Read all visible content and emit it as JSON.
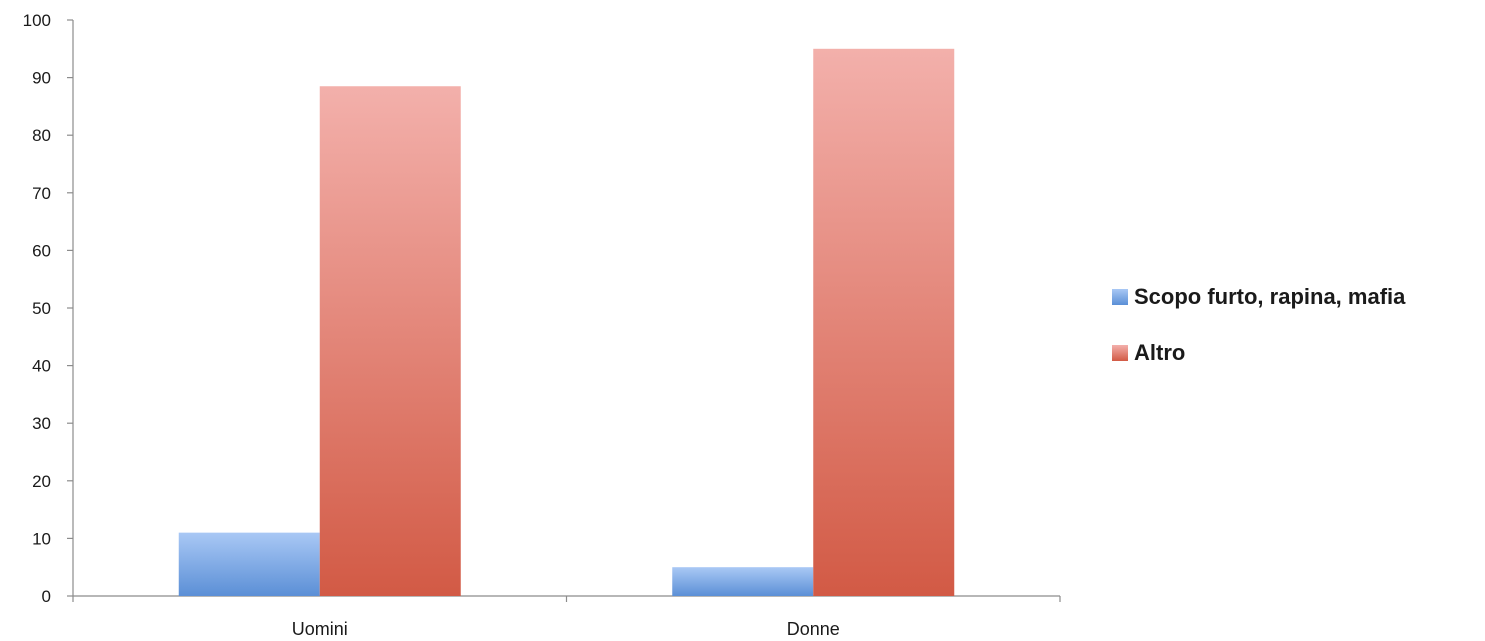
{
  "chart_data": {
    "type": "bar",
    "categories": [
      "Uomini",
      "Donne"
    ],
    "series": [
      {
        "name": "Scopo furto, rapina, mafia",
        "values": [
          11,
          5
        ],
        "color": "#5b8fd6"
      },
      {
        "name": "Altro",
        "values": [
          88.5,
          95
        ],
        "color": "#d9604f"
      }
    ],
    "ylim": [
      0,
      100
    ],
    "yticks": [
      0,
      10,
      20,
      30,
      40,
      50,
      60,
      70,
      80,
      90,
      100
    ],
    "ytick_labels": [
      "0",
      "10",
      "20",
      "30",
      "40",
      "50",
      "60",
      "70",
      "80",
      "90",
      "100"
    ],
    "legend_position": "right",
    "grid": false
  }
}
